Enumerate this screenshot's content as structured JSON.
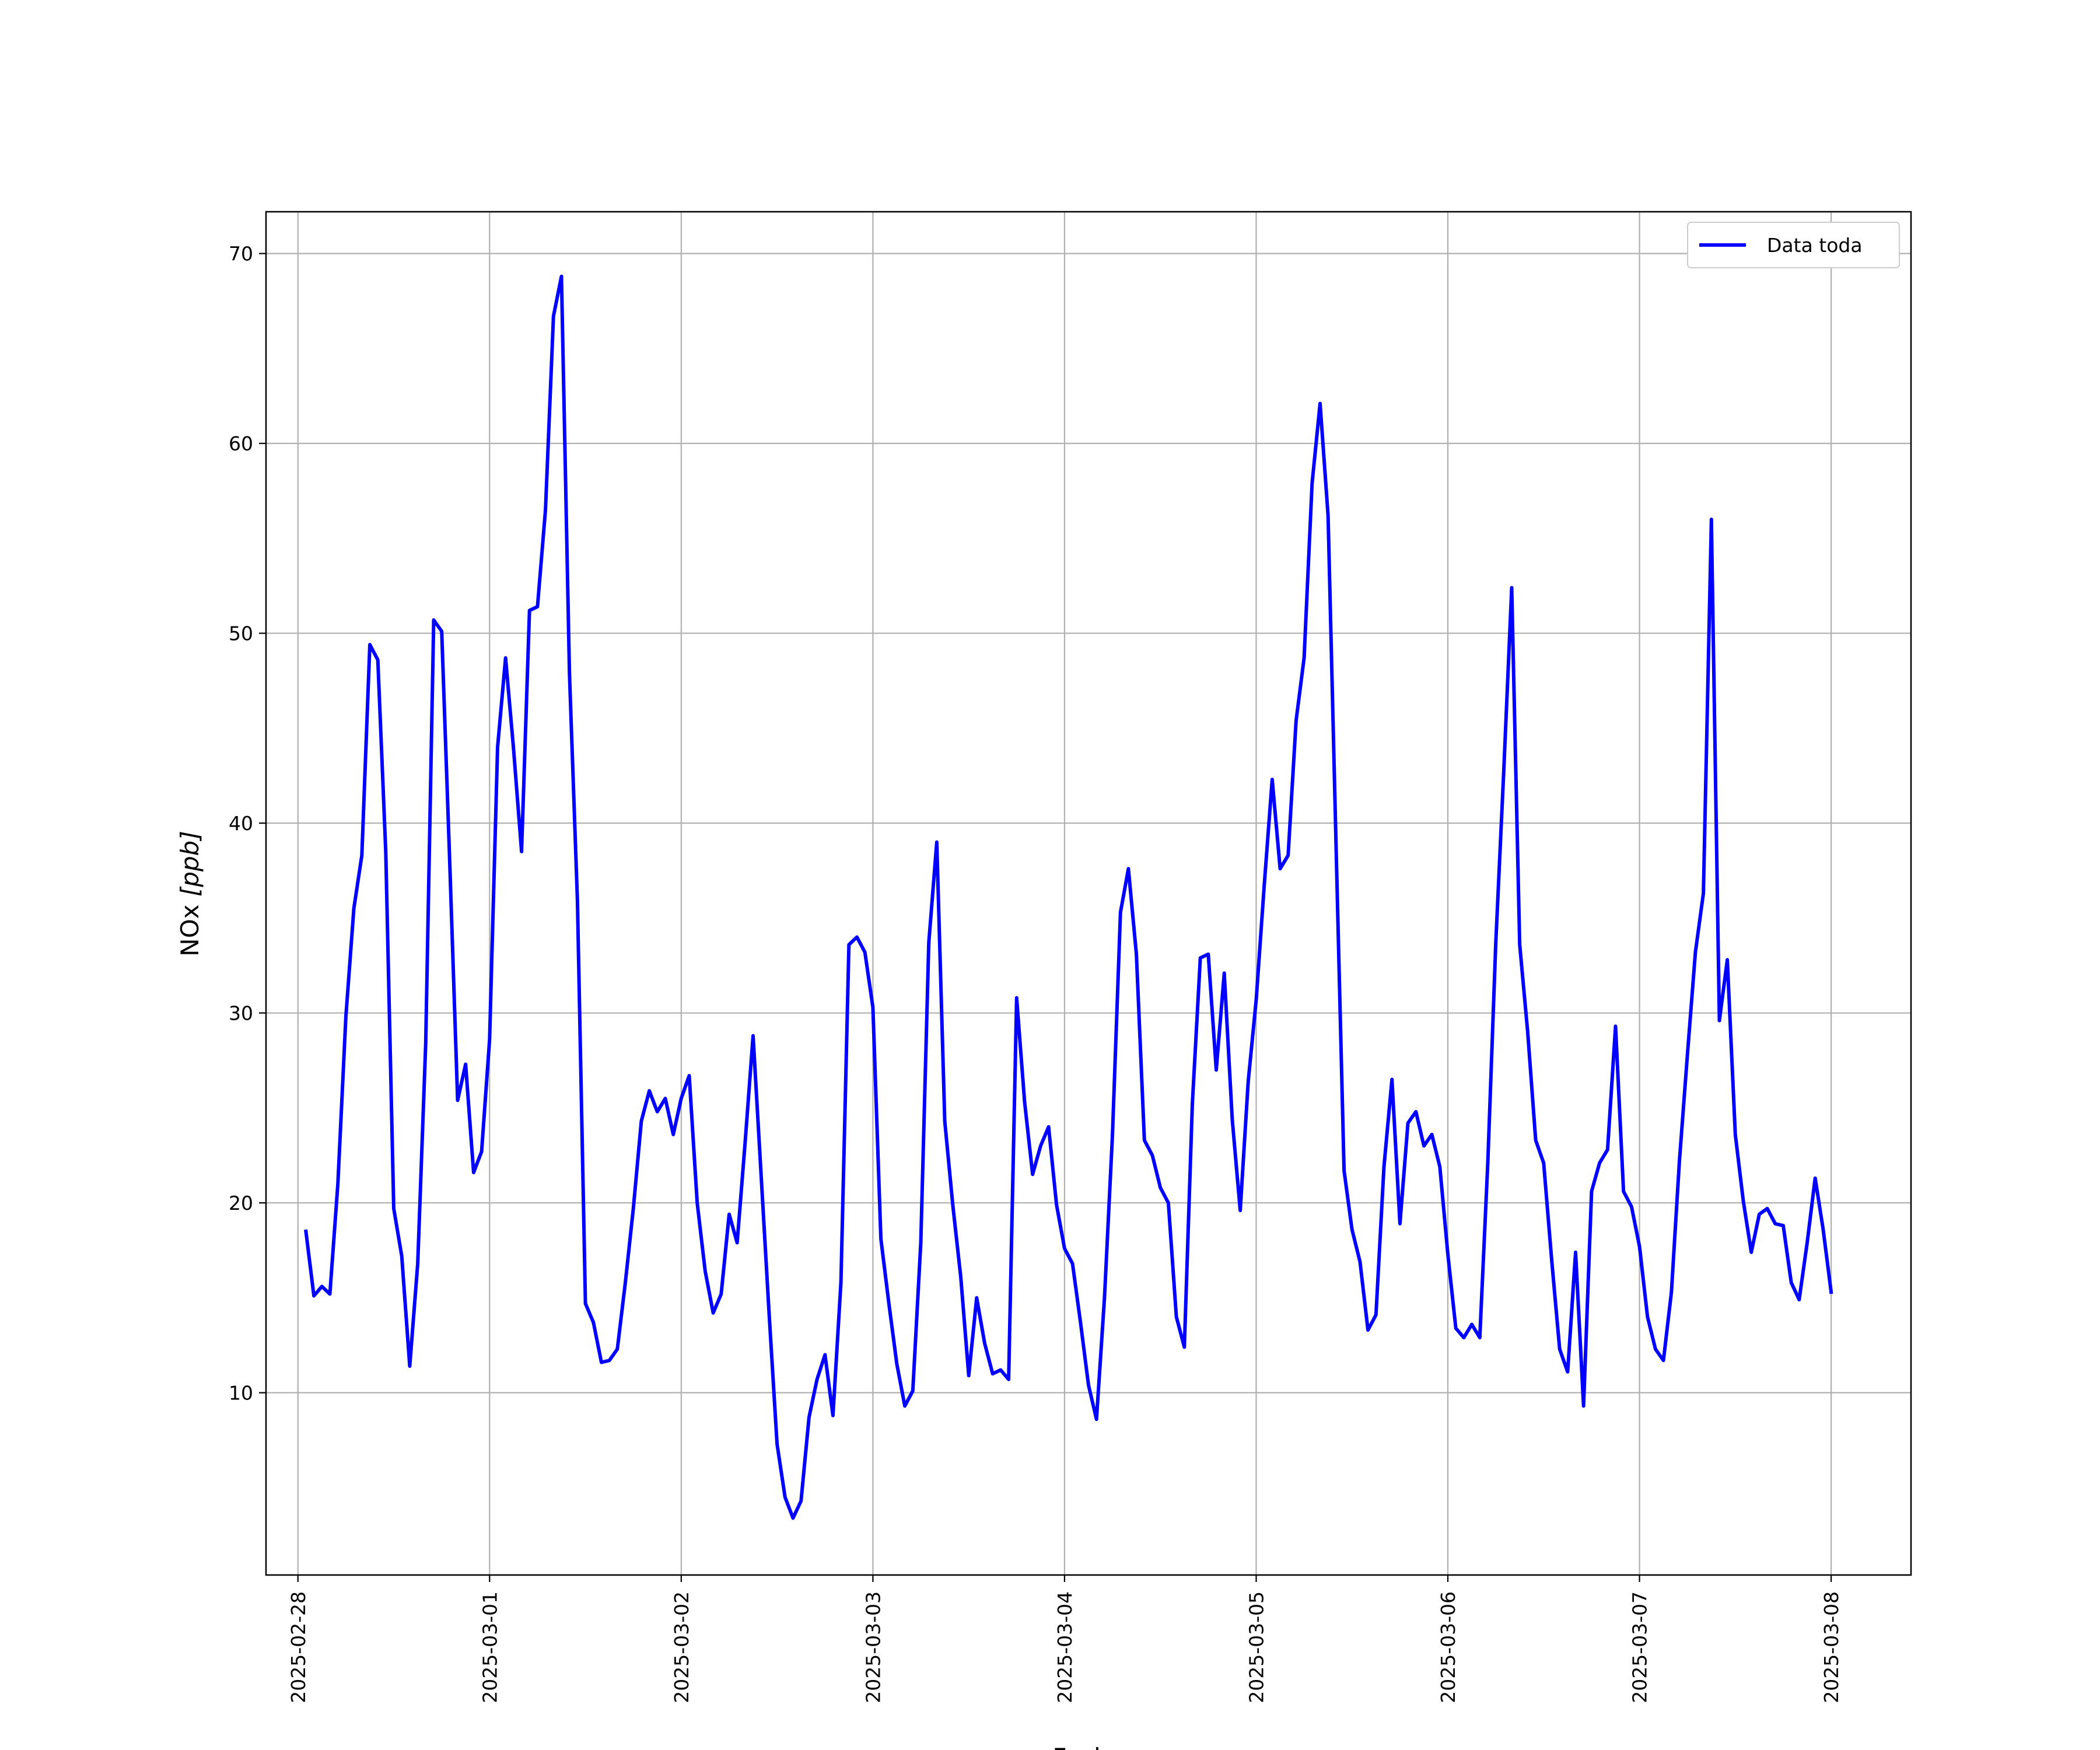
{
  "chart_data": {
    "type": "line",
    "title": "",
    "xlabel": "Fecha",
    "ylabel": "NOx [ppb]",
    "ylabel_parts": {
      "text": "NOx ",
      "unit": "[ppb]"
    },
    "x_tick_labels": [
      "2025-02-28",
      "2025-03-01",
      "2025-03-02",
      "2025-03-03",
      "2025-03-04",
      "2025-03-05",
      "2025-03-06",
      "2025-03-07",
      "2025-03-08"
    ],
    "y_tick_labels": [
      "10",
      "20",
      "30",
      "40",
      "50",
      "60",
      "70"
    ],
    "x_range": [
      "2025-02-27 20:00",
      "2025-03-08 10:00"
    ],
    "ylim": [
      0.4,
      72.2
    ],
    "grid": true,
    "legend_position": "top-right",
    "series": [
      {
        "name": "Data toda",
        "color": "#0000ff",
        "x_start": "2025-02-28 01:00",
        "x_step_hours": 1,
        "values": [
          18.5,
          15.1,
          15.6,
          15.2,
          21,
          29.8,
          35.5,
          38.3,
          49.4,
          48.6,
          38.5,
          19.7,
          17.2,
          11.4,
          16.8,
          28.4,
          50.7,
          50.1,
          38,
          25.4,
          27.3,
          21.6,
          22.7,
          28.6,
          44,
          48.7,
          43.9,
          38.5,
          51.2,
          51.4,
          56.5,
          66.7,
          68.8,
          47.9,
          35.9,
          14.7,
          13.7,
          11.6,
          11.7,
          12.3,
          15.8,
          19.7,
          24.3,
          25.9,
          24.8,
          25.5,
          23.6,
          25.5,
          26.7,
          20,
          16.4,
          14.2,
          15.2,
          19.4,
          17.9,
          23.2,
          28.8,
          21.5,
          14.2,
          7.3,
          4.5,
          3.4,
          4.3,
          8.7,
          10.7,
          12,
          8.8,
          15.8,
          33.6,
          34,
          33.2,
          30.3,
          18.1,
          14.7,
          11.5,
          9.3,
          10.1,
          17.9,
          33.7,
          39,
          24.3,
          19.9,
          16.1,
          10.9,
          15,
          12.6,
          11,
          11.2,
          10.7,
          30.8,
          25.3,
          21.5,
          23,
          24,
          19.9,
          17.6,
          16.8,
          13.7,
          10.4,
          8.6,
          15,
          23.6,
          35.3,
          37.6,
          33.1,
          23.3,
          22.5,
          20.8,
          20,
          14,
          12.4,
          25.2,
          32.9,
          33.1,
          27,
          32.1,
          24.4,
          19.6,
          26.4,
          30.7,
          36.7,
          42.3,
          37.6,
          38.3,
          45.4,
          48.7,
          57.9,
          62.1,
          56.2,
          38.8,
          21.7,
          18.6,
          16.9,
          13.3,
          14.1,
          21.9,
          26.5,
          18.9,
          24.2,
          24.8,
          23,
          23.6,
          21.9,
          17.3,
          13.4,
          12.9,
          13.6,
          12.9,
          22.1,
          33.7,
          42.7,
          52.4,
          33.6,
          29,
          23.3,
          22.1,
          17,
          12.3,
          11.1,
          17.4,
          9.3,
          20.6,
          22.1,
          22.8,
          29.3,
          20.6,
          19.8,
          17.7,
          14,
          12.3,
          11.7,
          15.3,
          22.2,
          27.8,
          33.2,
          36.3,
          56,
          29.6,
          32.8,
          23.6,
          20.1,
          17.4,
          19.4,
          19.7,
          18.9,
          18.8,
          15.8,
          14.9,
          17.9,
          21.3,
          18.6,
          15.3
        ]
      }
    ]
  }
}
